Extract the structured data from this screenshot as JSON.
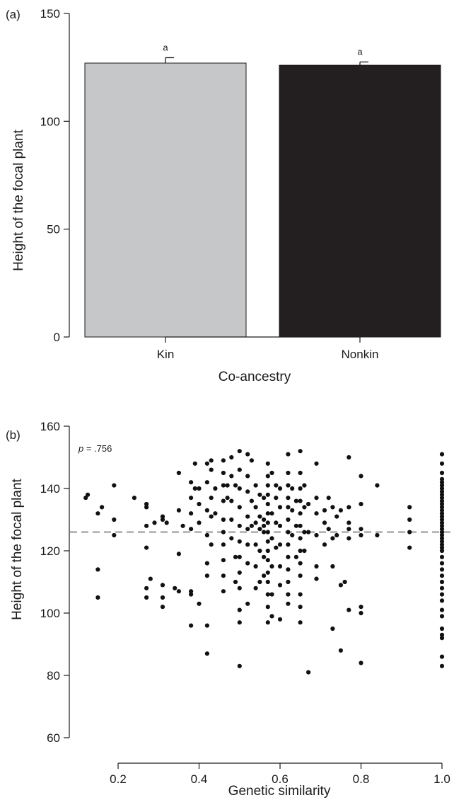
{
  "chart_data": [
    {
      "type": "bar",
      "panel_label": "(a)",
      "categories": [
        "Kin",
        "Nonkin"
      ],
      "values": [
        127,
        126
      ],
      "errors": [
        2.5,
        1.5
      ],
      "significance_letters": [
        "a",
        "a"
      ],
      "colors": [
        "#c6c7c9",
        "#231f20"
      ],
      "xlabel": "Co-ancestry",
      "ylabel": "Height of the focal plant",
      "ylim": [
        0,
        150
      ],
      "yticks": [
        0,
        50,
        100,
        150
      ],
      "ytick_labels": [
        "0",
        "50",
        "100",
        "150"
      ],
      "grid": false
    },
    {
      "type": "scatter",
      "panel_label": "(b)",
      "annotation_prefix": "p",
      "annotation_value": " = .756",
      "xlabel": "Genetic similarity",
      "ylabel": "Height of the focal plant",
      "xlim": [
        0.1,
        1.0
      ],
      "ylim": [
        60,
        160
      ],
      "xticks": [
        0.2,
        0.4,
        0.6,
        0.8,
        1.0
      ],
      "xtick_labels": [
        "0.2",
        "0.4",
        "0.6",
        "0.8",
        "1.0"
      ],
      "yticks": [
        60,
        80,
        100,
        120,
        140,
        160
      ],
      "ytick_labels": [
        "60",
        "80",
        "100",
        "120",
        "140",
        "160"
      ],
      "reference_line": {
        "y": 126,
        "style": "dashed",
        "color": "#a6a6a6"
      },
      "point_color": "#111111",
      "grid": false,
      "points": [
        [
          0.12,
          137
        ],
        [
          0.125,
          138
        ],
        [
          0.15,
          132
        ],
        [
          0.15,
          114
        ],
        [
          0.15,
          105
        ],
        [
          0.16,
          134
        ],
        [
          0.19,
          141
        ],
        [
          0.19,
          130
        ],
        [
          0.19,
          125
        ],
        [
          0.24,
          137
        ],
        [
          0.27,
          135
        ],
        [
          0.27,
          134
        ],
        [
          0.27,
          128
        ],
        [
          0.27,
          121
        ],
        [
          0.27,
          108
        ],
        [
          0.27,
          105
        ],
        [
          0.28,
          111
        ],
        [
          0.29,
          129
        ],
        [
          0.31,
          131
        ],
        [
          0.31,
          130
        ],
        [
          0.31,
          109
        ],
        [
          0.31,
          105
        ],
        [
          0.31,
          102
        ],
        [
          0.32,
          129
        ],
        [
          0.34,
          108
        ],
        [
          0.35,
          145
        ],
        [
          0.35,
          133
        ],
        [
          0.35,
          119
        ],
        [
          0.35,
          107
        ],
        [
          0.36,
          128
        ],
        [
          0.38,
          142
        ],
        [
          0.38,
          137
        ],
        [
          0.38,
          132
        ],
        [
          0.38,
          127
        ],
        [
          0.38,
          107
        ],
        [
          0.38,
          106
        ],
        [
          0.38,
          96
        ],
        [
          0.39,
          148
        ],
        [
          0.39,
          140
        ],
        [
          0.4,
          140
        ],
        [
          0.4,
          135
        ],
        [
          0.4,
          129
        ],
        [
          0.4,
          103
        ],
        [
          0.42,
          148
        ],
        [
          0.42,
          142
        ],
        [
          0.42,
          133
        ],
        [
          0.42,
          125
        ],
        [
          0.42,
          116
        ],
        [
          0.42,
          112
        ],
        [
          0.42,
          96
        ],
        [
          0.42,
          87
        ],
        [
          0.43,
          149
        ],
        [
          0.43,
          146
        ],
        [
          0.43,
          137
        ],
        [
          0.43,
          131
        ],
        [
          0.43,
          122
        ],
        [
          0.44,
          140
        ],
        [
          0.44,
          132
        ],
        [
          0.46,
          149
        ],
        [
          0.46,
          145
        ],
        [
          0.46,
          141
        ],
        [
          0.46,
          136
        ],
        [
          0.46,
          130
        ],
        [
          0.46,
          126
        ],
        [
          0.46,
          122
        ],
        [
          0.46,
          117
        ],
        [
          0.46,
          112
        ],
        [
          0.46,
          107
        ],
        [
          0.47,
          141
        ],
        [
          0.47,
          137
        ],
        [
          0.48,
          150
        ],
        [
          0.48,
          144
        ],
        [
          0.48,
          136
        ],
        [
          0.48,
          130
        ],
        [
          0.48,
          124
        ],
        [
          0.49,
          141
        ],
        [
          0.49,
          118
        ],
        [
          0.49,
          110
        ],
        [
          0.5,
          152
        ],
        [
          0.5,
          146
        ],
        [
          0.5,
          140
        ],
        [
          0.5,
          134
        ],
        [
          0.5,
          128
        ],
        [
          0.5,
          123
        ],
        [
          0.5,
          118
        ],
        [
          0.5,
          113
        ],
        [
          0.5,
          108
        ],
        [
          0.5,
          101
        ],
        [
          0.5,
          97
        ],
        [
          0.5,
          83
        ],
        [
          0.52,
          151
        ],
        [
          0.52,
          144
        ],
        [
          0.52,
          139
        ],
        [
          0.52,
          131
        ],
        [
          0.52,
          127
        ],
        [
          0.52,
          122
        ],
        [
          0.52,
          116
        ],
        [
          0.52,
          103
        ],
        [
          0.53,
          149
        ],
        [
          0.53,
          136
        ],
        [
          0.53,
          128
        ],
        [
          0.54,
          141
        ],
        [
          0.54,
          134
        ],
        [
          0.54,
          129
        ],
        [
          0.54,
          122
        ],
        [
          0.54,
          115
        ],
        [
          0.54,
          108
        ],
        [
          0.55,
          138
        ],
        [
          0.55,
          131
        ],
        [
          0.55,
          127
        ],
        [
          0.55,
          120
        ],
        [
          0.55,
          110
        ],
        [
          0.56,
          137
        ],
        [
          0.56,
          130
        ],
        [
          0.56,
          128
        ],
        [
          0.56,
          126
        ],
        [
          0.56,
          118
        ],
        [
          0.56,
          112
        ],
        [
          0.57,
          148
        ],
        [
          0.57,
          144
        ],
        [
          0.57,
          141
        ],
        [
          0.57,
          138
        ],
        [
          0.57,
          135
        ],
        [
          0.57,
          132
        ],
        [
          0.57,
          129
        ],
        [
          0.57,
          126
        ],
        [
          0.57,
          123
        ],
        [
          0.57,
          120
        ],
        [
          0.57,
          117
        ],
        [
          0.57,
          113
        ],
        [
          0.57,
          110
        ],
        [
          0.57,
          106
        ],
        [
          0.57,
          102
        ],
        [
          0.57,
          97
        ],
        [
          0.58,
          145
        ],
        [
          0.58,
          132
        ],
        [
          0.58,
          124
        ],
        [
          0.58,
          115
        ],
        [
          0.58,
          106
        ],
        [
          0.58,
          99
        ],
        [
          0.59,
          141
        ],
        [
          0.59,
          137
        ],
        [
          0.59,
          129
        ],
        [
          0.59,
          121
        ],
        [
          0.6,
          140
        ],
        [
          0.6,
          134
        ],
        [
          0.6,
          128
        ],
        [
          0.6,
          122
        ],
        [
          0.6,
          115
        ],
        [
          0.6,
          109
        ],
        [
          0.6,
          98
        ],
        [
          0.62,
          151
        ],
        [
          0.62,
          145
        ],
        [
          0.62,
          141
        ],
        [
          0.62,
          137
        ],
        [
          0.62,
          134
        ],
        [
          0.62,
          130
        ],
        [
          0.62,
          126
        ],
        [
          0.62,
          122
        ],
        [
          0.62,
          118
        ],
        [
          0.62,
          114
        ],
        [
          0.62,
          110
        ],
        [
          0.62,
          106
        ],
        [
          0.62,
          103
        ],
        [
          0.63,
          140
        ],
        [
          0.63,
          133
        ],
        [
          0.63,
          125
        ],
        [
          0.64,
          136
        ],
        [
          0.64,
          128
        ],
        [
          0.64,
          118
        ],
        [
          0.65,
          152
        ],
        [
          0.65,
          145
        ],
        [
          0.65,
          140
        ],
        [
          0.65,
          136
        ],
        [
          0.65,
          132
        ],
        [
          0.65,
          128
        ],
        [
          0.65,
          124
        ],
        [
          0.65,
          120
        ],
        [
          0.65,
          116
        ],
        [
          0.65,
          112
        ],
        [
          0.65,
          106
        ],
        [
          0.65,
          102
        ],
        [
          0.65,
          97
        ],
        [
          0.66,
          141
        ],
        [
          0.66,
          134
        ],
        [
          0.66,
          126
        ],
        [
          0.66,
          120
        ],
        [
          0.67,
          135
        ],
        [
          0.67,
          126
        ],
        [
          0.67,
          81
        ],
        [
          0.69,
          148
        ],
        [
          0.69,
          137
        ],
        [
          0.69,
          132
        ],
        [
          0.69,
          125
        ],
        [
          0.69,
          115
        ],
        [
          0.69,
          111
        ],
        [
          0.71,
          133
        ],
        [
          0.71,
          129
        ],
        [
          0.71,
          122
        ],
        [
          0.72,
          137
        ],
        [
          0.72,
          127
        ],
        [
          0.73,
          134
        ],
        [
          0.73,
          124
        ],
        [
          0.73,
          115
        ],
        [
          0.73,
          95
        ],
        [
          0.74,
          131
        ],
        [
          0.74,
          125
        ],
        [
          0.75,
          133
        ],
        [
          0.75,
          109
        ],
        [
          0.75,
          88
        ],
        [
          0.76,
          110
        ],
        [
          0.77,
          150
        ],
        [
          0.77,
          134
        ],
        [
          0.77,
          129
        ],
        [
          0.77,
          127
        ],
        [
          0.77,
          124
        ],
        [
          0.77,
          101
        ],
        [
          0.8,
          144
        ],
        [
          0.8,
          135
        ],
        [
          0.8,
          127
        ],
        [
          0.8,
          125
        ],
        [
          0.8,
          102
        ],
        [
          0.8,
          100
        ],
        [
          0.8,
          84
        ],
        [
          0.84,
          141
        ],
        [
          0.84,
          125
        ],
        [
          0.92,
          134
        ],
        [
          0.92,
          130
        ],
        [
          0.92,
          126
        ],
        [
          0.92,
          121
        ],
        [
          1.0,
          151
        ],
        [
          1.0,
          148
        ],
        [
          1.0,
          145
        ],
        [
          1.0,
          143
        ],
        [
          1.0,
          142
        ],
        [
          1.0,
          141
        ],
        [
          1.0,
          140
        ],
        [
          1.0,
          139
        ],
        [
          1.0,
          138
        ],
        [
          1.0,
          137
        ],
        [
          1.0,
          136
        ],
        [
          1.0,
          135
        ],
        [
          1.0,
          134
        ],
        [
          1.0,
          133
        ],
        [
          1.0,
          132
        ],
        [
          1.0,
          131
        ],
        [
          1.0,
          130
        ],
        [
          1.0,
          129
        ],
        [
          1.0,
          128
        ],
        [
          1.0,
          127
        ],
        [
          1.0,
          126
        ],
        [
          1.0,
          125
        ],
        [
          1.0,
          124
        ],
        [
          1.0,
          123
        ],
        [
          1.0,
          122
        ],
        [
          1.0,
          121
        ],
        [
          1.0,
          120
        ],
        [
          1.0,
          118
        ],
        [
          1.0,
          116
        ],
        [
          1.0,
          114
        ],
        [
          1.0,
          112
        ],
        [
          1.0,
          110
        ],
        [
          1.0,
          108
        ],
        [
          1.0,
          106
        ],
        [
          1.0,
          104
        ],
        [
          1.0,
          101
        ],
        [
          1.0,
          99
        ],
        [
          1.0,
          95
        ],
        [
          1.0,
          93
        ],
        [
          1.0,
          92
        ],
        [
          1.0,
          86
        ],
        [
          1.0,
          83
        ]
      ]
    }
  ]
}
